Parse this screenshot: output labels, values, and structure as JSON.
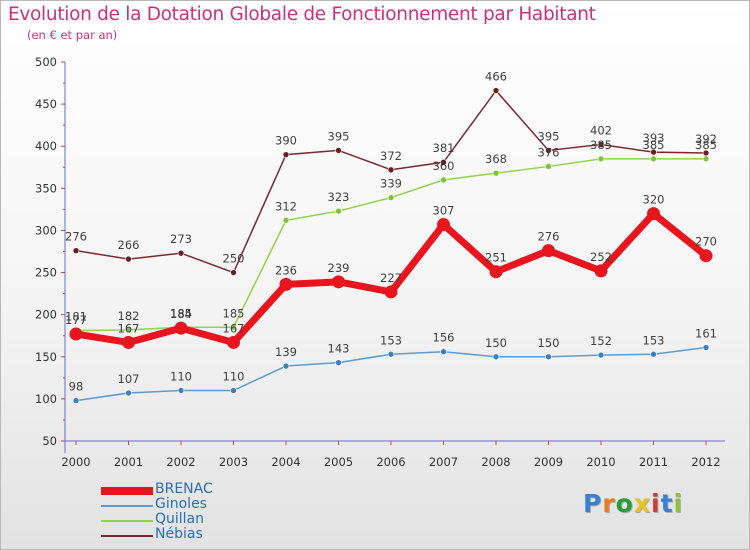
{
  "header": {
    "title": "Evolution de la Dotation Globale de Fonctionnement par Habitant",
    "subtitle": "(en € et par an)"
  },
  "logo": {
    "text": "Proxiti",
    "colors": [
      "#3a7fd0",
      "#e87a1e",
      "#2a9d3a",
      "#e8c31e",
      "#d23a3a",
      "#3a7fd0",
      "#8ac43a"
    ]
  },
  "chart_data": {
    "type": "line",
    "title": "Evolution de la Dotation Globale de Fonctionnement par Habitant",
    "subtitle": "(en € et par an)",
    "x": [
      "2000",
      "2001",
      "2002",
      "2003",
      "2004",
      "2005",
      "2006",
      "2007",
      "2008",
      "2009",
      "2010",
      "2011",
      "2012"
    ],
    "ylim": [
      50,
      500
    ],
    "yticks": [
      50,
      100,
      150,
      200,
      250,
      300,
      350,
      400,
      450,
      500
    ],
    "grid": false,
    "legend_position": "bottom-left",
    "series": [
      {
        "name": "BRENAC",
        "color": "#e8141e",
        "emphasis": true,
        "values": [
          177,
          167,
          184,
          167,
          236,
          239,
          227,
          307,
          251,
          276,
          252,
          320,
          270
        ],
        "labels": [
          "177",
          "167",
          "184",
          "167",
          "236",
          "239",
          "227",
          "307",
          "251",
          "276",
          "252",
          "320",
          "270"
        ]
      },
      {
        "name": "Ginoles",
        "color": "#5b9bd1",
        "marker": "#3b7fc0",
        "emphasis": false,
        "values": [
          98,
          107,
          110,
          110,
          139,
          143,
          153,
          156,
          150,
          150,
          152,
          153,
          161
        ],
        "labels": [
          "98",
          "107",
          "110",
          "110",
          "139",
          "143",
          "153",
          "156",
          "150",
          "150",
          "152",
          "153",
          "161"
        ]
      },
      {
        "name": "Quillan",
        "color": "#8fd44a",
        "marker": "#7cc43a",
        "emphasis": false,
        "values": [
          181,
          182,
          185,
          185,
          312,
          323,
          339,
          360,
          368,
          376,
          385,
          385,
          385
        ],
        "labels": [
          "181",
          "182",
          "185",
          "185",
          "312",
          "323",
          "339",
          "360",
          "368",
          "376",
          "385",
          "385",
          "385"
        ]
      },
      {
        "name": "Nébias",
        "color": "#7a2a2e",
        "marker": "#6a1e22",
        "emphasis": false,
        "values": [
          276,
          266,
          273,
          250,
          390,
          395,
          372,
          381,
          466,
          395,
          402,
          393,
          392
        ],
        "labels": [
          "276",
          "266",
          "273",
          "250",
          "390",
          "395",
          "372",
          "381",
          "466",
          "395",
          "402",
          "393",
          "392"
        ]
      }
    ]
  }
}
